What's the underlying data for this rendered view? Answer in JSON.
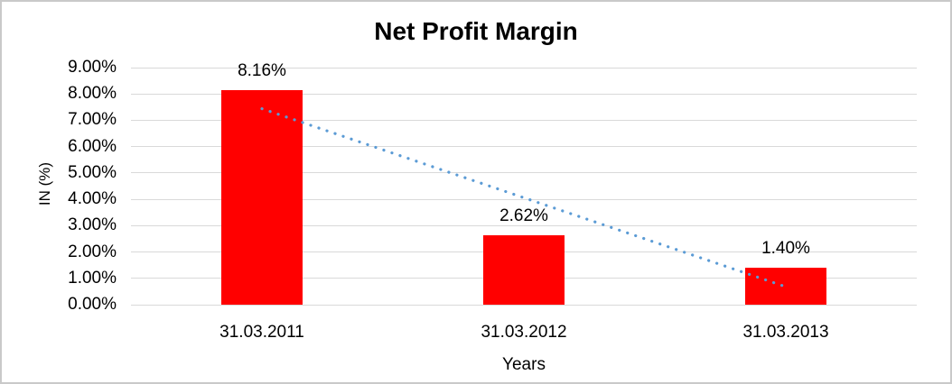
{
  "chart_data": {
    "type": "bar",
    "title": "Net Profit Margin",
    "xlabel": "Years",
    "ylabel": "IN (%)",
    "categories": [
      "31.03.2011",
      "31.03.2012",
      "31.03.2013"
    ],
    "values": [
      8.16,
      2.62,
      1.4
    ],
    "data_labels": [
      "8.16%",
      "2.62%",
      "1.40%"
    ],
    "y_tick_labels": [
      "0.00%",
      "1.00%",
      "2.00%",
      "3.00%",
      "4.00%",
      "5.00%",
      "6.00%",
      "7.00%",
      "8.00%",
      "9.00%"
    ],
    "y_tick_step": 1,
    "ylim": [
      0,
      9
    ],
    "grid": true,
    "legend_position": "none",
    "trendline": {
      "type": "linear",
      "style": "dotted",
      "start": {
        "category_index": 0,
        "value": 7.44
      },
      "end": {
        "category_index": 2,
        "value": 0.68
      }
    },
    "colors": {
      "bar": "#FF0000",
      "trendline": "#5B9BD5",
      "gridline": "#D9D9D9",
      "text": "#000000",
      "background": "#FFFFFF",
      "border": "#C9C9C9"
    }
  }
}
